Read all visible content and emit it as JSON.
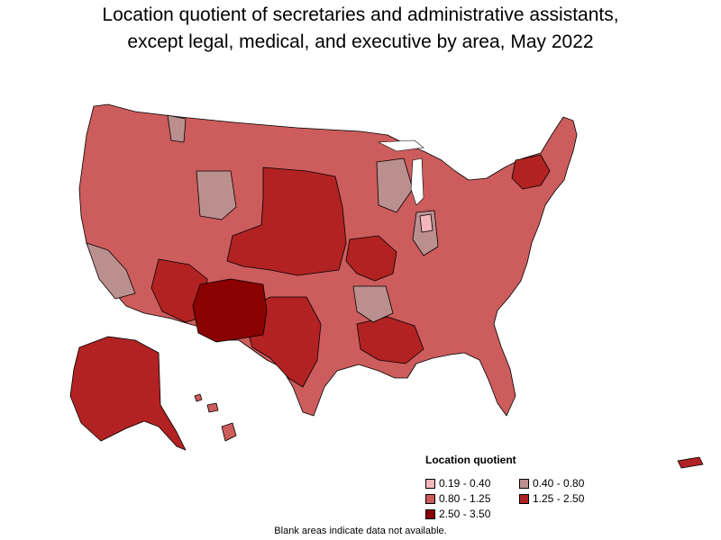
{
  "title_line1": "Location quotient of secretaries and administrative assistants,",
  "title_line2": "except legal, medical, and executive by area, May 2022",
  "legend": {
    "title": "Location quotient",
    "items": [
      {
        "label": "0.19 - 0.40",
        "color": "#f4b6bb"
      },
      {
        "label": "0.40 - 0.80",
        "color": "#bc8f8f"
      },
      {
        "label": "0.80 - 1.25",
        "color": "#cd5c5c"
      },
      {
        "label": "1.25 - 2.50",
        "color": "#b22222"
      },
      {
        "label": "2.50 - 3.50",
        "color": "#8b0000"
      }
    ]
  },
  "footnote": "Blank areas indicate data not available."
}
